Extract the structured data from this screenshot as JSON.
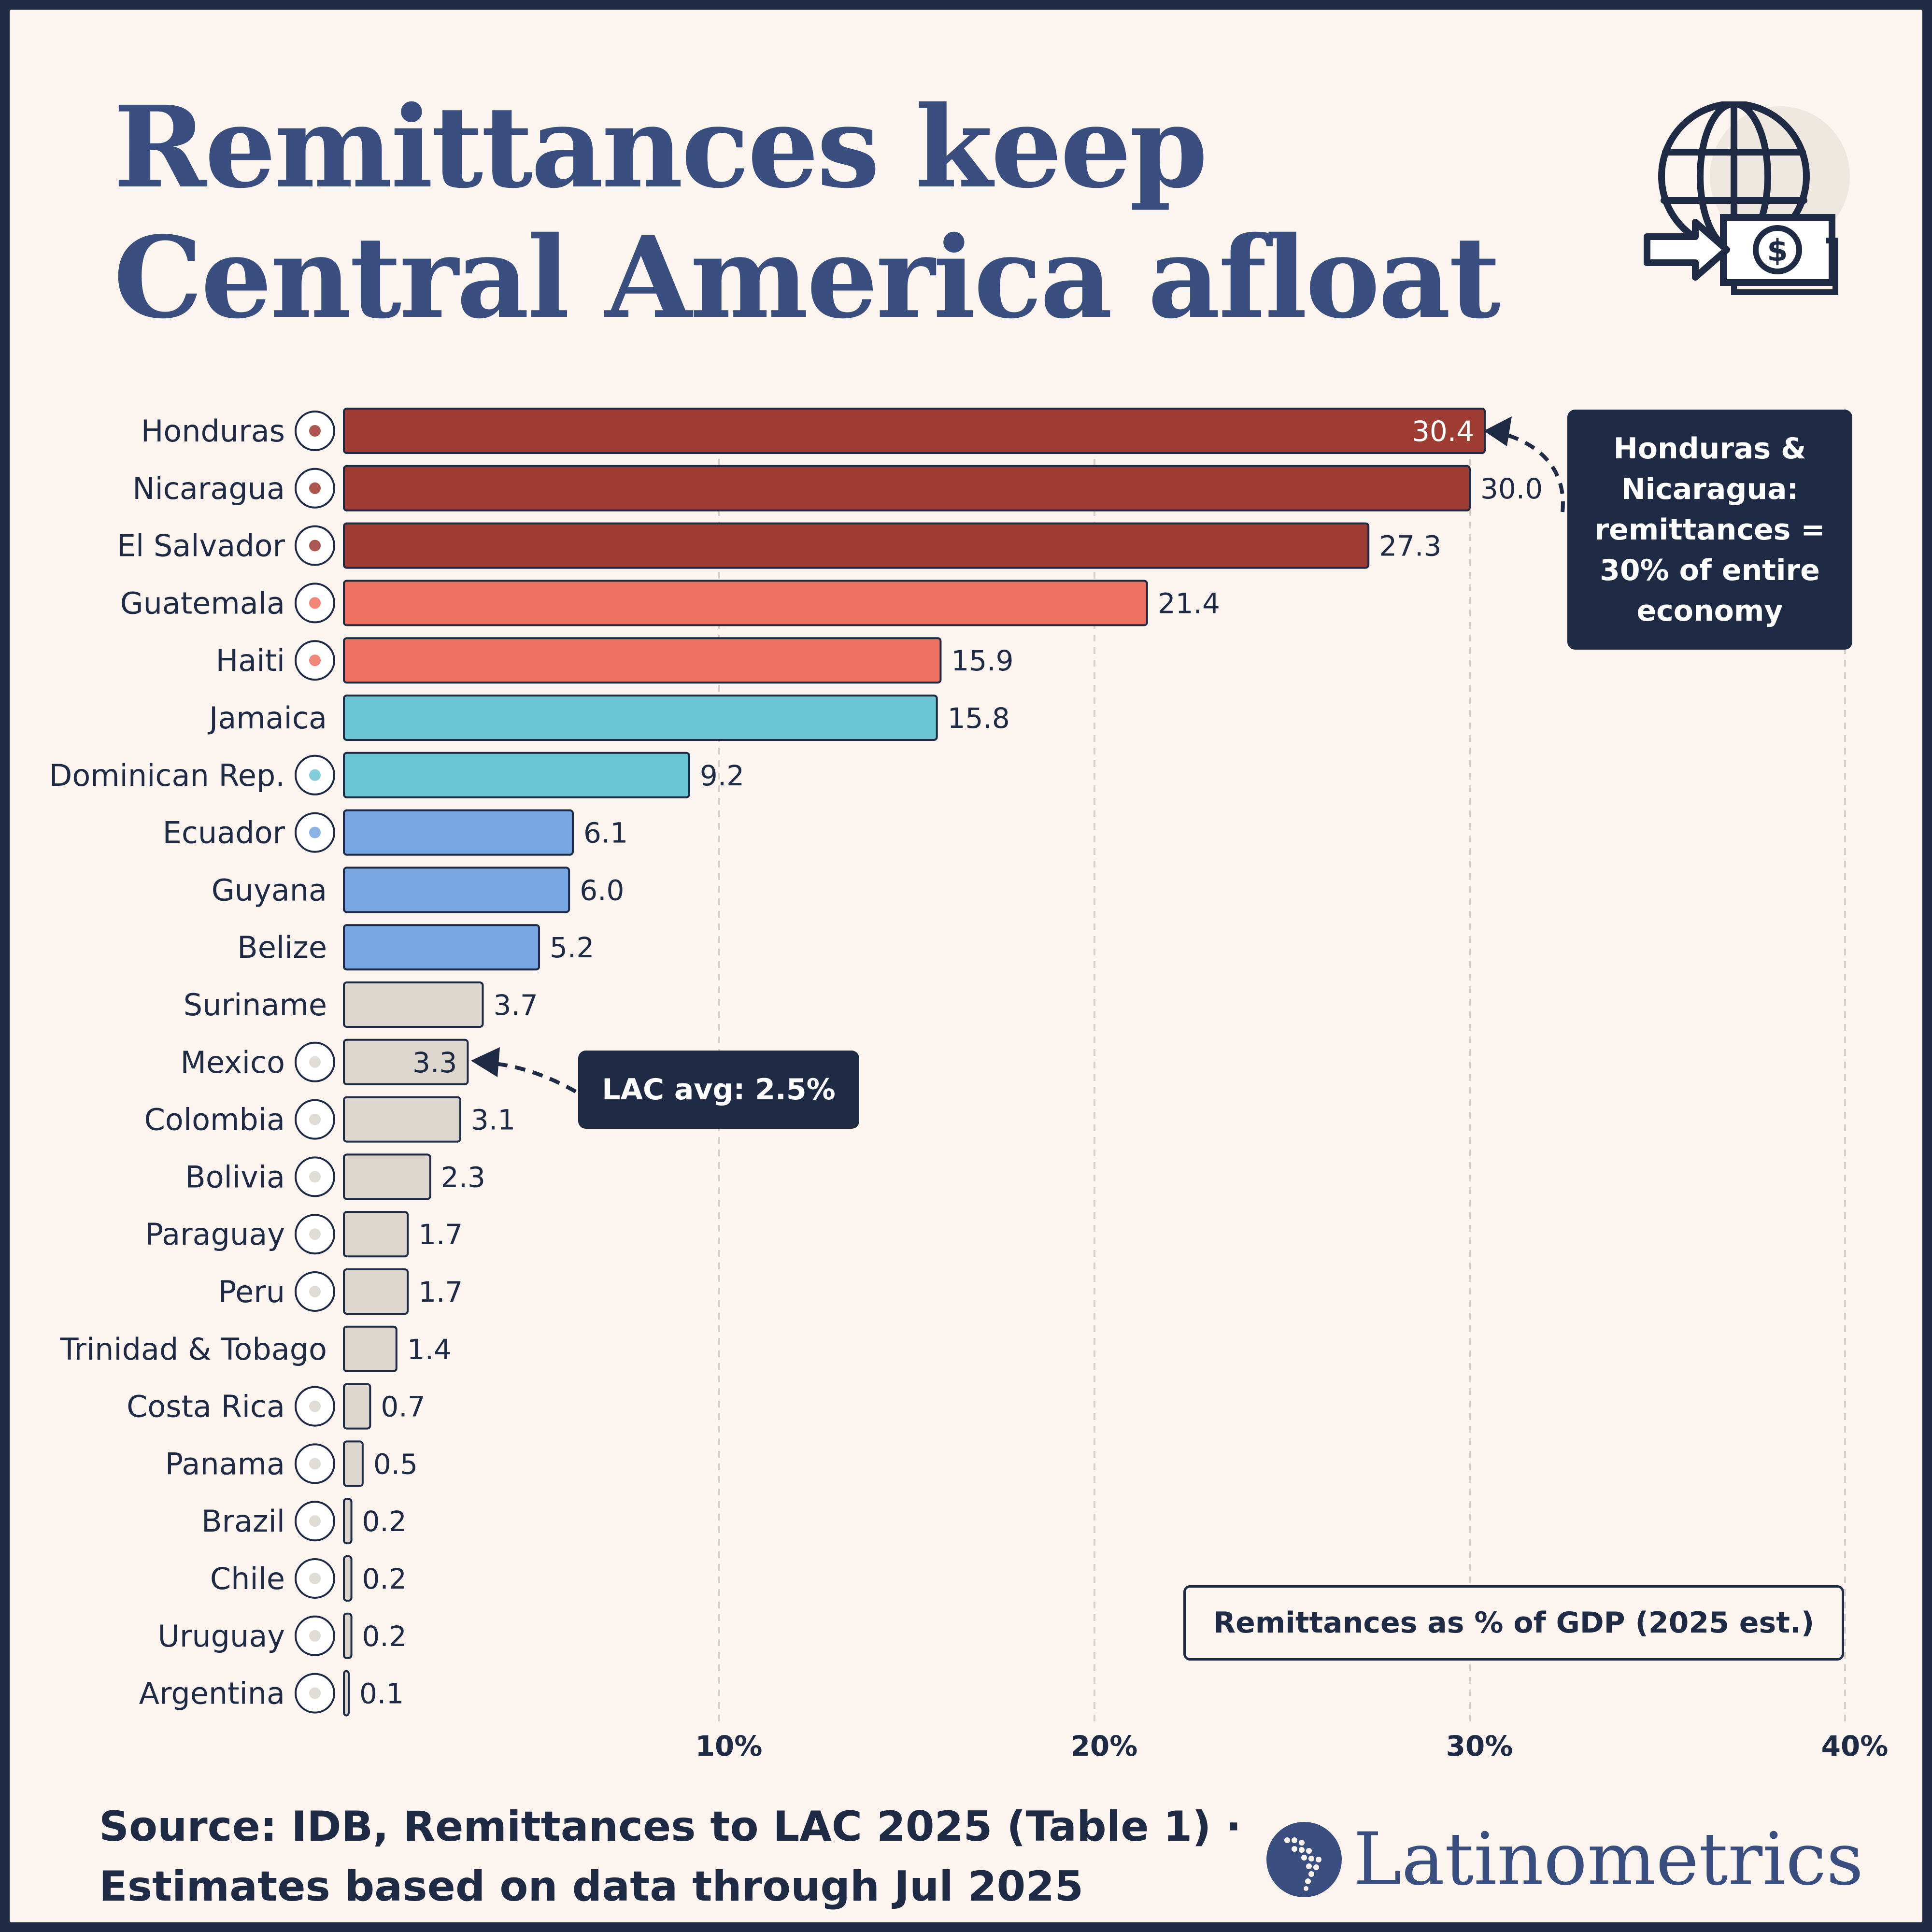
{
  "title": "Remittances keep Central America afloat",
  "callouts": {
    "top": "Honduras & Nicaragua: remittances = 30% of entire economy",
    "avg": "LAC avg: 2.5%"
  },
  "legend_label": "Remittances as % of GDP (2025 est.)",
  "source": "Source: IDB, Remittances to LAC 2025 (Table 1) · Estimates based on data through Jul 2025",
  "brand": "Latinometrics",
  "colors": {
    "tier1": "#9e3b32",
    "tier2": "#ef7162",
    "tier3": "#6bc5d2",
    "tier4": "#78a6e2",
    "tier5": "#dcd6cf",
    "ink": "#1f2a44",
    "title": "#3a4f7f"
  },
  "chart_data": {
    "type": "bar",
    "orientation": "horizontal",
    "title": "Remittances keep Central America afloat",
    "xlabel": "",
    "ylabel": "",
    "legend": "Remittances as % of GDP (2025 est.)",
    "xlim": [
      0,
      40
    ],
    "xticks": [
      "10%",
      "20%",
      "30%",
      "40%"
    ],
    "grid": "vertical dashed",
    "categories": [
      "Honduras",
      "Nicaragua",
      "El Salvador",
      "Guatemala",
      "Haiti",
      "Jamaica",
      "Dominican Rep.",
      "Ecuador",
      "Guyana",
      "Belize",
      "Suriname",
      "Mexico",
      "Colombia",
      "Bolivia",
      "Paraguay",
      "Peru",
      "Trinidad & Tobago",
      "Costa Rica",
      "Panama",
      "Brazil",
      "Chile",
      "Uruguay",
      "Argentina"
    ],
    "values": [
      30.4,
      30.0,
      27.3,
      21.4,
      15.9,
      15.8,
      9.2,
      6.1,
      6.0,
      5.2,
      3.7,
      3.3,
      3.1,
      2.3,
      1.7,
      1.7,
      1.4,
      0.7,
      0.5,
      0.2,
      0.2,
      0.2,
      0.1
    ],
    "value_labels": [
      "30.4",
      "30.0",
      "27.3",
      "21.4",
      "15.9",
      "15.8",
      "9.2",
      "6.1",
      "6.0",
      "5.2",
      "3.7",
      "3.3",
      "3.1",
      "2.3",
      "1.7",
      "1.7",
      "1.4",
      "0.7",
      "0.5",
      "0.2",
      "0.2",
      "0.2",
      "0.1"
    ],
    "color_tier": [
      1,
      1,
      1,
      2,
      2,
      3,
      3,
      4,
      4,
      4,
      5,
      5,
      5,
      5,
      5,
      5,
      5,
      5,
      5,
      5,
      5,
      5,
      5
    ],
    "has_flag": [
      true,
      true,
      true,
      true,
      true,
      false,
      true,
      true,
      false,
      false,
      false,
      true,
      true,
      true,
      true,
      true,
      false,
      true,
      true,
      true,
      true,
      true,
      true
    ],
    "inside_label": [
      true,
      false,
      false,
      false,
      false,
      false,
      false,
      false,
      false,
      false,
      false,
      true,
      false,
      false,
      false,
      false,
      false,
      false,
      false,
      false,
      false,
      false,
      false
    ]
  }
}
